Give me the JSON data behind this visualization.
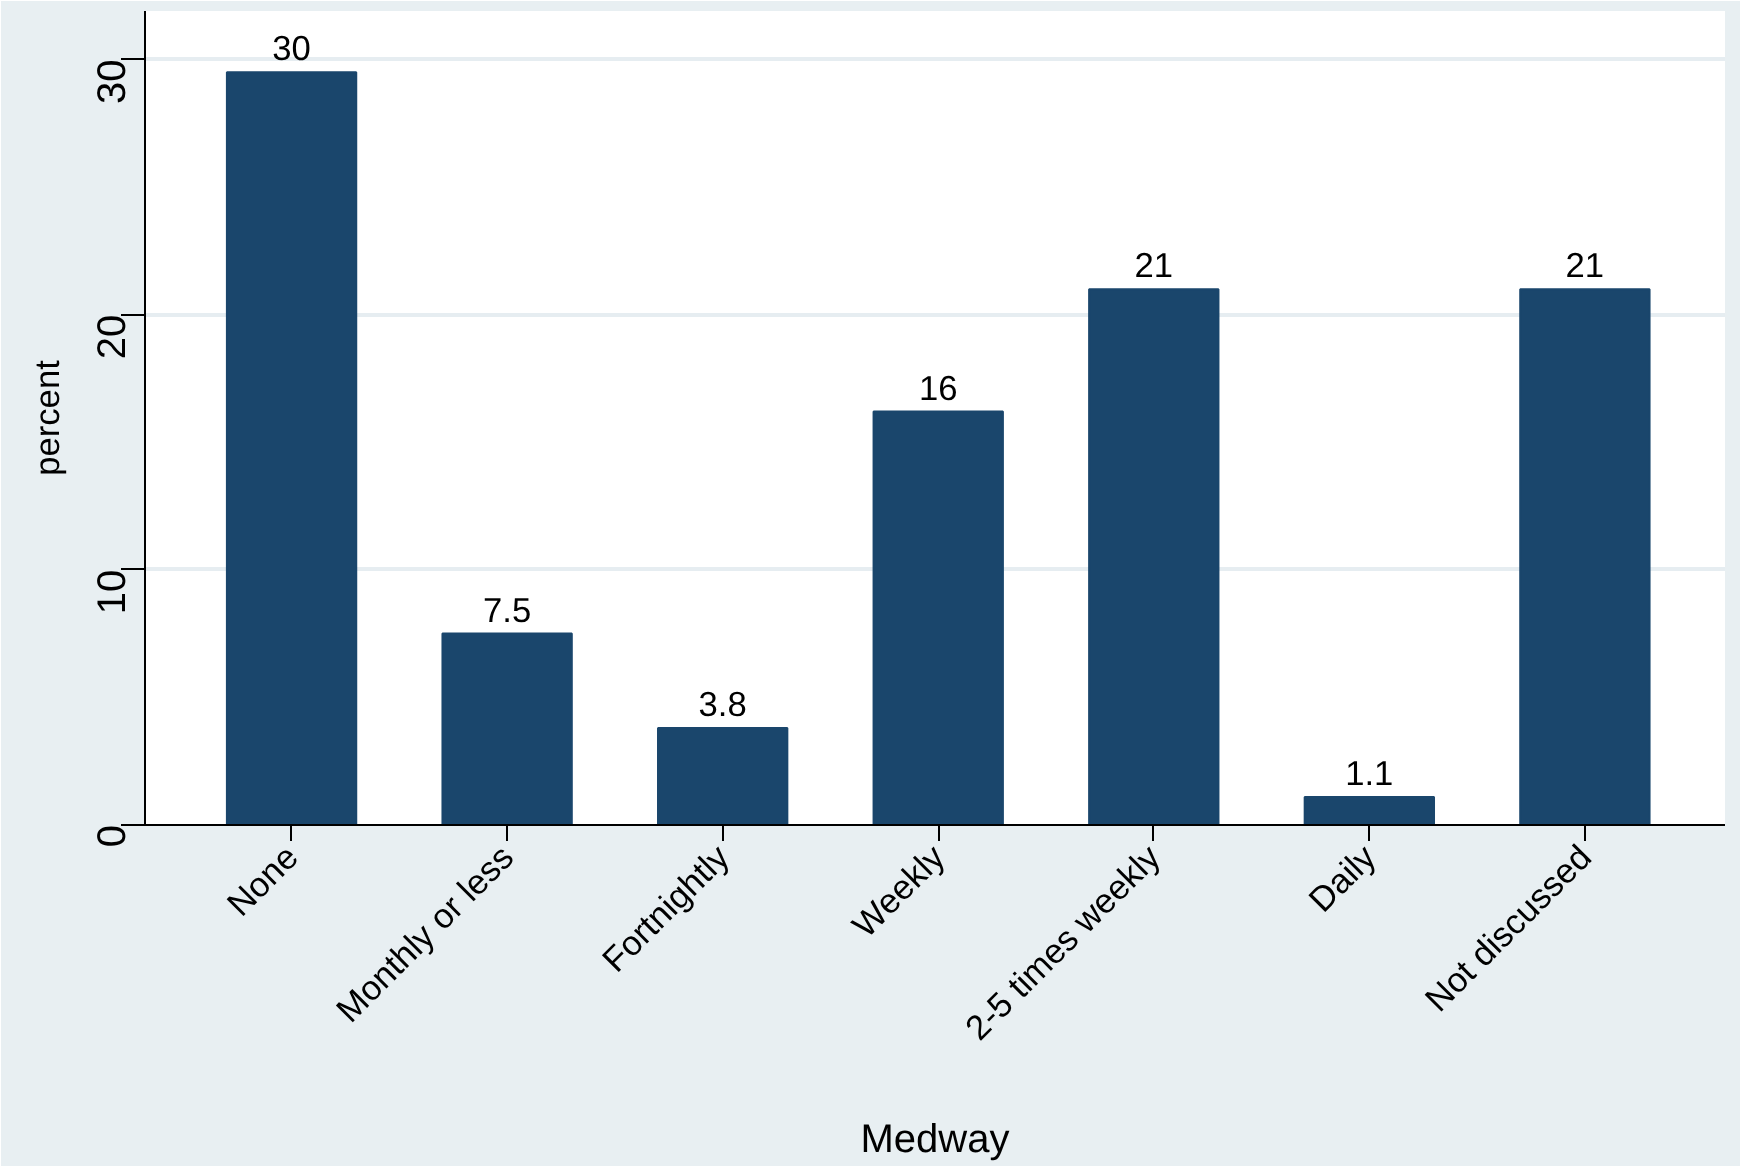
{
  "chart_data": {
    "type": "bar",
    "xlabel": "Medway",
    "ylabel": "percent",
    "categories": [
      "None",
      "Monthly or less",
      "Fortnightly",
      "Weekly",
      "2-5 times weekly",
      "Daily",
      "Not discussed"
    ],
    "series": [
      {
        "color": "#1a466c",
        "values": [
          29.5,
          7.5,
          3.8,
          16.2,
          21.0,
          1.1,
          21.0
        ]
      }
    ],
    "value_labels": [
      "30",
      "7.5",
      "3.8",
      "16",
      "21",
      "1.1",
      "21"
    ],
    "ylim": [
      0,
      31.9
    ],
    "yticks": [
      0,
      10,
      20,
      30
    ],
    "grid": "y"
  }
}
